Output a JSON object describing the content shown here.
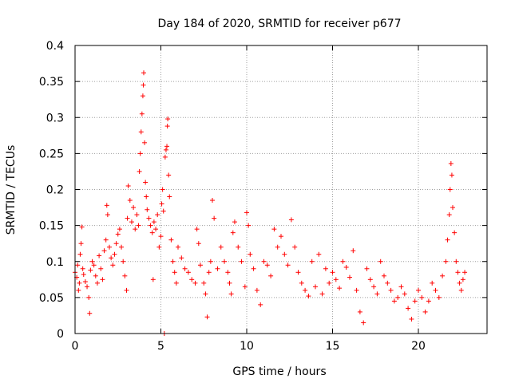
{
  "chart_data": {
    "type": "scatter",
    "title": "Day 184 of 2020, SRMTID for receiver p677",
    "xlabel": "GPS time / hours",
    "ylabel": "SRMTID / TECUs",
    "xlim": [
      0,
      24
    ],
    "ylim": [
      0,
      0.4
    ],
    "x_ticks": [
      "0",
      "5",
      "10",
      "15",
      "20"
    ],
    "y_ticks": [
      "0",
      "0.05",
      "0.1",
      "0.15",
      "0.2",
      "0.25",
      "0.3",
      "0.35",
      "0.4"
    ],
    "grid": true,
    "marker": "+",
    "color": "#ff0000",
    "series": [
      {
        "name": "SRMTID p677",
        "points": [
          [
            0.0,
            0.085
          ],
          [
            0.1,
            0.078
          ],
          [
            0.15,
            0.095
          ],
          [
            0.2,
            0.06
          ],
          [
            0.25,
            0.07
          ],
          [
            0.3,
            0.11
          ],
          [
            0.35,
            0.125
          ],
          [
            0.4,
            0.148
          ],
          [
            0.45,
            0.09
          ],
          [
            0.5,
            0.082
          ],
          [
            0.6,
            0.072
          ],
          [
            0.7,
            0.065
          ],
          [
            0.8,
            0.05
          ],
          [
            0.85,
            0.028
          ],
          [
            0.9,
            0.088
          ],
          [
            1.0,
            0.1
          ],
          [
            1.1,
            0.095
          ],
          [
            1.2,
            0.08
          ],
          [
            1.3,
            0.07
          ],
          [
            1.4,
            0.108
          ],
          [
            1.5,
            0.09
          ],
          [
            1.6,
            0.075
          ],
          [
            1.7,
            0.115
          ],
          [
            1.8,
            0.13
          ],
          [
            1.85,
            0.178
          ],
          [
            1.9,
            0.165
          ],
          [
            2.0,
            0.12
          ],
          [
            2.1,
            0.105
          ],
          [
            2.2,
            0.095
          ],
          [
            2.3,
            0.11
          ],
          [
            2.4,
            0.125
          ],
          [
            2.5,
            0.138
          ],
          [
            2.6,
            0.145
          ],
          [
            2.7,
            0.12
          ],
          [
            2.8,
            0.1
          ],
          [
            2.9,
            0.08
          ],
          [
            3.0,
            0.06
          ],
          [
            3.05,
            0.16
          ],
          [
            3.1,
            0.205
          ],
          [
            3.2,
            0.185
          ],
          [
            3.3,
            0.155
          ],
          [
            3.4,
            0.175
          ],
          [
            3.5,
            0.145
          ],
          [
            3.6,
            0.165
          ],
          [
            3.7,
            0.15
          ],
          [
            3.75,
            0.225
          ],
          [
            3.8,
            0.25
          ],
          [
            3.85,
            0.28
          ],
          [
            3.9,
            0.305
          ],
          [
            3.95,
            0.33
          ],
          [
            3.98,
            0.345
          ],
          [
            4.0,
            0.362
          ],
          [
            4.05,
            0.265
          ],
          [
            4.1,
            0.21
          ],
          [
            4.15,
            0.19
          ],
          [
            4.2,
            0.172
          ],
          [
            4.3,
            0.16
          ],
          [
            4.4,
            0.15
          ],
          [
            4.5,
            0.14
          ],
          [
            4.55,
            0.075
          ],
          [
            4.6,
            0.155
          ],
          [
            4.7,
            0.145
          ],
          [
            4.8,
            0.165
          ],
          [
            4.9,
            0.12
          ],
          [
            5.0,
            0.135
          ],
          [
            5.05,
            0.18
          ],
          [
            5.1,
            0.2
          ],
          [
            5.15,
            0.17
          ],
          [
            5.2,
            0.0
          ],
          [
            5.25,
            0.245
          ],
          [
            5.3,
            0.255
          ],
          [
            5.35,
            0.26
          ],
          [
            5.38,
            0.288
          ],
          [
            5.4,
            0.298
          ],
          [
            5.45,
            0.22
          ],
          [
            5.5,
            0.19
          ],
          [
            5.6,
            0.13
          ],
          [
            5.7,
            0.1
          ],
          [
            5.8,
            0.085
          ],
          [
            5.9,
            0.07
          ],
          [
            6.0,
            0.12
          ],
          [
            6.2,
            0.105
          ],
          [
            6.4,
            0.09
          ],
          [
            6.6,
            0.085
          ],
          [
            6.8,
            0.075
          ],
          [
            7.0,
            0.07
          ],
          [
            7.1,
            0.145
          ],
          [
            7.2,
            0.125
          ],
          [
            7.3,
            0.095
          ],
          [
            7.5,
            0.07
          ],
          [
            7.6,
            0.055
          ],
          [
            7.7,
            0.023
          ],
          [
            7.8,
            0.085
          ],
          [
            7.9,
            0.1
          ],
          [
            8.0,
            0.185
          ],
          [
            8.1,
            0.16
          ],
          [
            8.3,
            0.09
          ],
          [
            8.5,
            0.12
          ],
          [
            8.7,
            0.1
          ],
          [
            8.9,
            0.085
          ],
          [
            9.0,
            0.07
          ],
          [
            9.1,
            0.055
          ],
          [
            9.2,
            0.14
          ],
          [
            9.3,
            0.155
          ],
          [
            9.5,
            0.12
          ],
          [
            9.7,
            0.1
          ],
          [
            9.9,
            0.065
          ],
          [
            10.0,
            0.168
          ],
          [
            10.1,
            0.15
          ],
          [
            10.2,
            0.11
          ],
          [
            10.4,
            0.09
          ],
          [
            10.6,
            0.06
          ],
          [
            10.8,
            0.04
          ],
          [
            11.0,
            0.1
          ],
          [
            11.2,
            0.095
          ],
          [
            11.4,
            0.08
          ],
          [
            11.6,
            0.145
          ],
          [
            11.8,
            0.12
          ],
          [
            12.0,
            0.135
          ],
          [
            12.2,
            0.11
          ],
          [
            12.4,
            0.095
          ],
          [
            12.6,
            0.158
          ],
          [
            12.8,
            0.12
          ],
          [
            13.0,
            0.085
          ],
          [
            13.2,
            0.07
          ],
          [
            13.4,
            0.06
          ],
          [
            13.6,
            0.052
          ],
          [
            13.8,
            0.1
          ],
          [
            14.0,
            0.065
          ],
          [
            14.2,
            0.11
          ],
          [
            14.4,
            0.055
          ],
          [
            14.6,
            0.09
          ],
          [
            14.8,
            0.07
          ],
          [
            15.0,
            0.085
          ],
          [
            15.2,
            0.075
          ],
          [
            15.4,
            0.063
          ],
          [
            15.6,
            0.1
          ],
          [
            15.8,
            0.092
          ],
          [
            16.0,
            0.078
          ],
          [
            16.2,
            0.115
          ],
          [
            16.4,
            0.06
          ],
          [
            16.6,
            0.03
          ],
          [
            16.8,
            0.015
          ],
          [
            17.0,
            0.09
          ],
          [
            17.2,
            0.075
          ],
          [
            17.4,
            0.065
          ],
          [
            17.6,
            0.055
          ],
          [
            17.8,
            0.1
          ],
          [
            18.0,
            0.08
          ],
          [
            18.2,
            0.07
          ],
          [
            18.4,
            0.06
          ],
          [
            18.6,
            0.045
          ],
          [
            18.8,
            0.05
          ],
          [
            19.0,
            0.065
          ],
          [
            19.2,
            0.055
          ],
          [
            19.4,
            0.035
          ],
          [
            19.6,
            0.02
          ],
          [
            19.8,
            0.045
          ],
          [
            20.0,
            0.06
          ],
          [
            20.2,
            0.05
          ],
          [
            20.4,
            0.03
          ],
          [
            20.6,
            0.045
          ],
          [
            20.8,
            0.07
          ],
          [
            21.0,
            0.06
          ],
          [
            21.2,
            0.05
          ],
          [
            21.4,
            0.08
          ],
          [
            21.6,
            0.1
          ],
          [
            21.7,
            0.13
          ],
          [
            21.8,
            0.165
          ],
          [
            21.85,
            0.2
          ],
          [
            21.9,
            0.236
          ],
          [
            21.95,
            0.22
          ],
          [
            22.0,
            0.175
          ],
          [
            22.1,
            0.14
          ],
          [
            22.2,
            0.1
          ],
          [
            22.3,
            0.085
          ],
          [
            22.4,
            0.07
          ],
          [
            22.5,
            0.06
          ],
          [
            22.6,
            0.075
          ],
          [
            22.7,
            0.085
          ]
        ]
      }
    ]
  }
}
